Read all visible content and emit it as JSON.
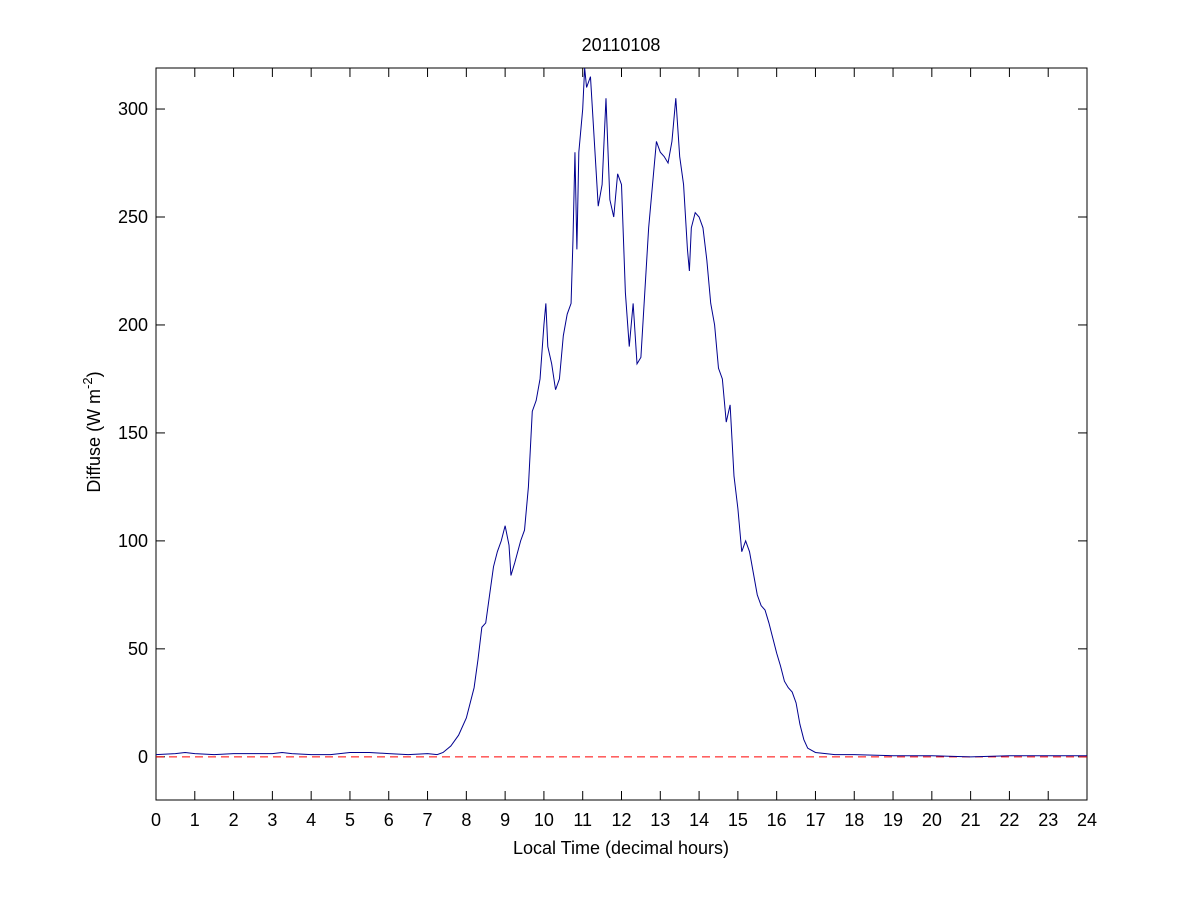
{
  "chart_data": {
    "type": "line",
    "title": "20110108",
    "xlabel": "Local Time (decimal hours)",
    "ylabel": {
      "text": "Diffuse (W m",
      "superscript": "-2",
      "suffix": ")"
    },
    "xlim": [
      0,
      24
    ],
    "ylim": [
      -20,
      319
    ],
    "xticks": [
      0,
      1,
      2,
      3,
      4,
      5,
      6,
      7,
      8,
      9,
      10,
      11,
      12,
      13,
      14,
      15,
      16,
      17,
      18,
      19,
      20,
      21,
      22,
      23,
      24
    ],
    "yticks": [
      0,
      50,
      100,
      150,
      200,
      250,
      300
    ],
    "grid": false,
    "box": true,
    "reference_line": {
      "value": 0,
      "color": "#ff0000",
      "dashed": true
    },
    "series": [
      {
        "color": "#00008f",
        "x": [
          0,
          0.5,
          0.75,
          1,
          1.5,
          2,
          2.5,
          3,
          3.25,
          3.5,
          4,
          4.5,
          5,
          5.5,
          6,
          6.5,
          7,
          7.25,
          7.4,
          7.6,
          7.8,
          8,
          8.1,
          8.2,
          8.3,
          8.4,
          8.5,
          8.6,
          8.7,
          8.8,
          8.9,
          9,
          9.1,
          9.15,
          9.25,
          9.4,
          9.5,
          9.6,
          9.7,
          9.8,
          9.9,
          10,
          10.05,
          10.1,
          10.2,
          10.3,
          10.4,
          10.5,
          10.6,
          10.7,
          10.75,
          10.8,
          10.85,
          10.9,
          11,
          11.05,
          11.1,
          11.2,
          11.3,
          11.4,
          11.5,
          11.6,
          11.7,
          11.8,
          11.9,
          12,
          12.1,
          12.2,
          12.3,
          12.4,
          12.5,
          12.6,
          12.7,
          12.8,
          12.9,
          13,
          13.1,
          13.2,
          13.3,
          13.4,
          13.5,
          13.6,
          13.7,
          13.75,
          13.8,
          13.9,
          14,
          14.1,
          14.2,
          14.3,
          14.4,
          14.5,
          14.6,
          14.7,
          14.8,
          14.9,
          15,
          15.1,
          15.2,
          15.3,
          15.4,
          15.5,
          15.6,
          15.7,
          15.8,
          15.9,
          16,
          16.1,
          16.2,
          16.3,
          16.4,
          16.5,
          16.6,
          16.7,
          16.8,
          17,
          17.5,
          18,
          19,
          20,
          21,
          22,
          23,
          24
        ],
        "values": [
          1,
          1.5,
          2,
          1.5,
          1,
          1.5,
          1.5,
          1.5,
          2,
          1.5,
          1,
          1,
          2,
          2,
          1.5,
          1,
          1.5,
          1,
          2,
          5,
          10,
          18,
          25,
          32,
          45,
          60,
          62,
          75,
          88,
          95,
          100,
          107,
          98,
          84,
          90,
          100,
          105,
          125,
          160,
          165,
          175,
          200,
          210,
          190,
          182,
          170,
          175,
          195,
          205,
          210,
          240,
          280,
          235,
          280,
          300,
          319,
          310,
          315,
          285,
          255,
          265,
          305,
          258,
          250,
          270,
          265,
          215,
          190,
          210,
          182,
          185,
          215,
          245,
          265,
          285,
          280,
          278,
          275,
          285,
          305,
          278,
          265,
          235,
          225,
          245,
          252,
          250,
          245,
          230,
          210,
          200,
          180,
          175,
          155,
          163,
          130,
          115,
          95,
          100,
          95,
          85,
          75,
          70,
          68,
          62,
          55,
          48,
          42,
          35,
          32,
          30,
          25,
          15,
          8,
          4,
          2,
          1,
          1,
          0.5,
          0.5,
          0,
          0.5,
          0.5,
          0.5
        ]
      }
    ]
  }
}
